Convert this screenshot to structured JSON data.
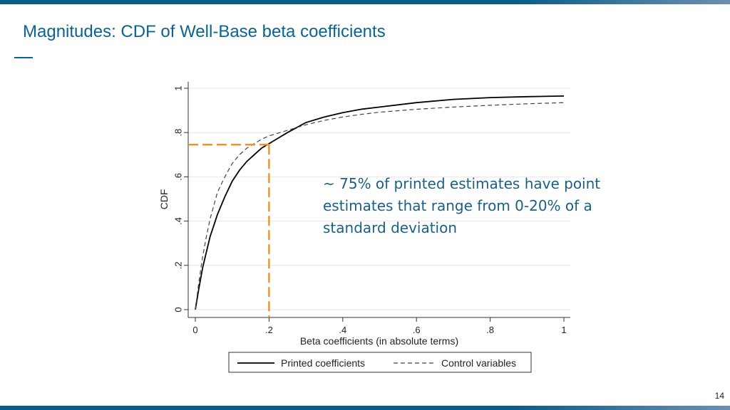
{
  "slide": {
    "title": "Magnitudes: CDF of Well-Base beta coefficients",
    "annotation": "~ 75% of printed estimates have point estimates that range from 0-20% of a standard deviation",
    "page_number": "14",
    "colors": {
      "accent": "#0a6491",
      "highlight": "#e8962e"
    }
  },
  "chart_data": {
    "type": "line",
    "title": "",
    "xlabel": "Beta coefficients (in absolute terms)",
    "ylabel": "CDF",
    "xlim": [
      0,
      1
    ],
    "ylim": [
      0,
      1
    ],
    "x_ticks": [
      0,
      0.2,
      0.4,
      0.6,
      0.8,
      1
    ],
    "x_tick_labels": [
      "0",
      ".2",
      ".4",
      ".6",
      ".8",
      "1"
    ],
    "y_ticks": [
      0,
      0.2,
      0.4,
      0.6,
      0.8,
      1
    ],
    "y_tick_labels": [
      "0",
      ".2",
      ".4",
      ".6",
      ".8",
      "1"
    ],
    "grid": true,
    "legend_position": "bottom",
    "series": [
      {
        "name": "Printed coefficients",
        "style": "solid",
        "color": "#000000",
        "x": [
          0,
          0.01,
          0.02,
          0.03,
          0.04,
          0.05,
          0.06,
          0.08,
          0.1,
          0.12,
          0.14,
          0.16,
          0.18,
          0.2,
          0.25,
          0.3,
          0.35,
          0.4,
          0.45,
          0.5,
          0.6,
          0.7,
          0.8,
          0.9,
          1.0
        ],
        "y": [
          0,
          0.1,
          0.19,
          0.26,
          0.33,
          0.38,
          0.43,
          0.51,
          0.58,
          0.63,
          0.67,
          0.7,
          0.73,
          0.75,
          0.8,
          0.845,
          0.87,
          0.89,
          0.905,
          0.915,
          0.935,
          0.95,
          0.958,
          0.962,
          0.965
        ]
      },
      {
        "name": "Control variables",
        "style": "dashed",
        "color": "#444444",
        "x": [
          0,
          0.01,
          0.02,
          0.03,
          0.04,
          0.05,
          0.06,
          0.08,
          0.1,
          0.12,
          0.14,
          0.16,
          0.18,
          0.2,
          0.25,
          0.3,
          0.35,
          0.4,
          0.45,
          0.5,
          0.6,
          0.7,
          0.8,
          0.9,
          1.0
        ],
        "y": [
          0,
          0.13,
          0.24,
          0.33,
          0.41,
          0.47,
          0.53,
          0.6,
          0.66,
          0.7,
          0.73,
          0.75,
          0.77,
          0.785,
          0.81,
          0.835,
          0.855,
          0.87,
          0.882,
          0.892,
          0.905,
          0.915,
          0.923,
          0.93,
          0.935
        ]
      }
    ],
    "reference_point": {
      "x": 0.2,
      "y": 0.745,
      "color": "#e8962e",
      "style": "dashed"
    }
  }
}
